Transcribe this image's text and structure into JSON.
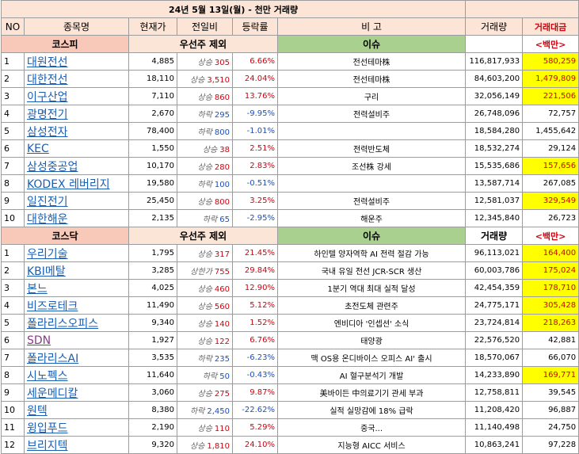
{
  "title": "24년 5월 13일(월) - 천만 거래량",
  "headers": {
    "no": "NO",
    "name": "종목명",
    "price": "현재가",
    "change": "전일비",
    "rate": "등락률",
    "note": "비 고",
    "volume": "거래량",
    "amount": "거래대금"
  },
  "kospi": {
    "section_label": "코스피",
    "filter_label": "우선주 제외",
    "issue_label": "이슈",
    "amount_unit": "<백만>",
    "rows": [
      {
        "no": "1",
        "name": "대원전선",
        "price": "4,885",
        "dir": "상승",
        "change": "305",
        "trend": "up",
        "rate": "6.66%",
        "issue": "전선테마株",
        "volume": "116,817,933",
        "amount": "580,259",
        "hl": true
      },
      {
        "no": "2",
        "name": "대한전선",
        "price": "18,110",
        "dir": "상승",
        "change": "3,510",
        "trend": "up",
        "rate": "24.04%",
        "issue": "전선테마株",
        "volume": "84,603,200",
        "amount": "1,479,809",
        "hl": true
      },
      {
        "no": "3",
        "name": "이구산업",
        "price": "7,110",
        "dir": "상승",
        "change": "860",
        "trend": "up",
        "rate": "13.76%",
        "issue": "구리",
        "volume": "32,056,149",
        "amount": "221,506",
        "hl": true
      },
      {
        "no": "4",
        "name": "광명전기",
        "price": "2,670",
        "dir": "하락",
        "change": "295",
        "trend": "down",
        "rate": "-9.95%",
        "issue": "전력설비주",
        "volume": "26,748,096",
        "amount": "72,757",
        "hl": false
      },
      {
        "no": "5",
        "name": "삼성전자",
        "price": "78,400",
        "dir": "하락",
        "change": "800",
        "trend": "down",
        "rate": "-1.01%",
        "issue": "",
        "volume": "18,584,280",
        "amount": "1,455,642",
        "hl": false
      },
      {
        "no": "6",
        "name": "KEC",
        "price": "1,550",
        "dir": "상승",
        "change": "38",
        "trend": "up",
        "rate": "2.51%",
        "issue": "전력반도체",
        "volume": "18,532,274",
        "amount": "29,124",
        "hl": false
      },
      {
        "no": "7",
        "name": "삼성중공업",
        "price": "10,170",
        "dir": "상승",
        "change": "280",
        "trend": "up",
        "rate": "2.83%",
        "issue": "조선株 강세",
        "volume": "15,535,686",
        "amount": "157,656",
        "hl": true
      },
      {
        "no": "8",
        "name": "KODEX 레버리지",
        "price": "19,580",
        "dir": "하락",
        "change": "100",
        "trend": "down",
        "rate": "-0.51%",
        "issue": "",
        "volume": "13,587,714",
        "amount": "267,085",
        "hl": false
      },
      {
        "no": "9",
        "name": "일진전기",
        "price": "25,450",
        "dir": "상승",
        "change": "800",
        "trend": "up",
        "rate": "3.25%",
        "issue": "전력설비주",
        "volume": "12,581,037",
        "amount": "329,549",
        "hl": true
      },
      {
        "no": "10",
        "name": "대한해운",
        "price": "2,135",
        "dir": "하락",
        "change": "65",
        "trend": "down",
        "rate": "-2.95%",
        "issue": "해운주",
        "volume": "12,345,840",
        "amount": "26,723",
        "hl": false
      }
    ]
  },
  "kosdaq": {
    "section_label": "코스닥",
    "filter_label": "우선주 제외",
    "issue_label": "이슈",
    "volume_label": "거래량",
    "amount_unit": "<백만>",
    "rows": [
      {
        "no": "1",
        "name": "우리기술",
        "price": "1,795",
        "dir": "상승",
        "change": "317",
        "trend": "up",
        "rate": "21.45%",
        "issue": "하인텔 양자역학 AI 전력 절감 가능",
        "volume": "96,113,021",
        "amount": "164,400",
        "hl": true,
        "purple": false
      },
      {
        "no": "2",
        "name": "KBI메탈",
        "price": "3,285",
        "dir": "상한가",
        "change": "755",
        "trend": "up",
        "rate": "29.84%",
        "issue": "국내 유일 전선 JCR-SCR 생산",
        "volume": "60,003,786",
        "amount": "175,024",
        "hl": true,
        "purple": false
      },
      {
        "no": "3",
        "name": "본느",
        "price": "4,025",
        "dir": "상승",
        "change": "460",
        "trend": "up",
        "rate": "12.90%",
        "issue": "1분기 역대 최대 실적 달성",
        "volume": "42,454,359",
        "amount": "178,710",
        "hl": true,
        "purple": false
      },
      {
        "no": "4",
        "name": "비즈로테크",
        "price": "11,490",
        "dir": "상승",
        "change": "560",
        "trend": "up",
        "rate": "5.12%",
        "issue": "초전도체 관련주",
        "volume": "24,775,171",
        "amount": "305,428",
        "hl": true,
        "purple": false
      },
      {
        "no": "5",
        "name": "폴라리스오피스",
        "price": "9,340",
        "dir": "상승",
        "change": "140",
        "trend": "up",
        "rate": "1.52%",
        "issue": "엔비디아 '인셉션' 소식",
        "volume": "23,724,814",
        "amount": "218,263",
        "hl": true,
        "purple": false
      },
      {
        "no": "6",
        "name": "SDN",
        "price": "1,927",
        "dir": "상승",
        "change": "122",
        "trend": "up",
        "rate": "6.76%",
        "issue": "태양광",
        "volume": "22,576,520",
        "amount": "42,881",
        "hl": false,
        "purple": true
      },
      {
        "no": "7",
        "name": "폴라리스AI",
        "price": "3,535",
        "dir": "하락",
        "change": "235",
        "trend": "down",
        "rate": "-6.23%",
        "issue": "맥 OS용 온디바이스 오피스 AI' 출시",
        "volume": "18,570,067",
        "amount": "66,070",
        "hl": false,
        "purple": false
      },
      {
        "no": "8",
        "name": "시노펙스",
        "price": "11,640",
        "dir": "하락",
        "change": "50",
        "trend": "down",
        "rate": "-0.43%",
        "issue": "AI 혈구분석기 개발",
        "volume": "14,233,890",
        "amount": "169,771",
        "hl": true,
        "purple": false
      },
      {
        "no": "9",
        "name": "세운메디칼",
        "price": "3,060",
        "dir": "상승",
        "change": "275",
        "trend": "up",
        "rate": "9.87%",
        "issue": "美바이든 中의료기기 관세 부과",
        "volume": "12,758,811",
        "amount": "39,545",
        "hl": false,
        "purple": false
      },
      {
        "no": "10",
        "name": "원텍",
        "price": "8,380",
        "dir": "하락",
        "change": "2,450",
        "trend": "down",
        "rate": "-22.62%",
        "issue": "실적 실망감에 18% 급락",
        "volume": "11,208,420",
        "amount": "96,887",
        "hl": false,
        "purple": false
      },
      {
        "no": "11",
        "name": "윙입푸드",
        "price": "2,190",
        "dir": "상승",
        "change": "110",
        "trend": "up",
        "rate": "5.29%",
        "issue": "중국...",
        "volume": "11,140,498",
        "amount": "24,750",
        "hl": false,
        "purple": false
      },
      {
        "no": "12",
        "name": "브리지텍",
        "price": "9,320",
        "dir": "상승",
        "change": "1,810",
        "trend": "up",
        "rate": "24.10%",
        "issue": "지능형 AICC 서비스",
        "volume": "10,863,241",
        "amount": "97,228",
        "hl": false,
        "purple": false
      }
    ]
  }
}
